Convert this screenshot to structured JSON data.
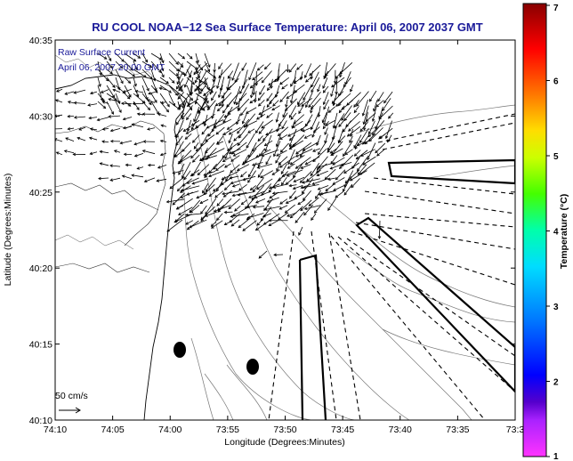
{
  "title": "RU COOL  NOAA−12  Sea Surface Temperature:  April 06, 2007 2037 GMT",
  "overlay": {
    "line1": "Raw Surface Current",
    "line2": "April 06, 2007 20:00 GMT"
  },
  "axes": {
    "xlabel": "Longitude (Degrees:Minutes)",
    "ylabel": "Latitude (Degrees:Minutes)",
    "xticks": [
      "74:10",
      "74:05",
      "74:00",
      "73:55",
      "73:50",
      "73:45",
      "73:40",
      "73:35",
      "73:3"
    ],
    "yticks": [
      "40:35",
      "40:30",
      "40:25",
      "40:20",
      "40:15",
      "40:10"
    ]
  },
  "scale": {
    "label": "50 cm/s"
  },
  "colorbar": {
    "label": "Temperature (°C)",
    "ticks": [
      "1",
      "2",
      "3",
      "4",
      "5",
      "6",
      "7"
    ],
    "colors": [
      "#ff33ff",
      "#6600cc",
      "#0000ff",
      "#0099ff",
      "#00ffff",
      "#00ff66",
      "#66ff00",
      "#ffff00",
      "#ff9900",
      "#ff0000",
      "#990000"
    ]
  }
}
